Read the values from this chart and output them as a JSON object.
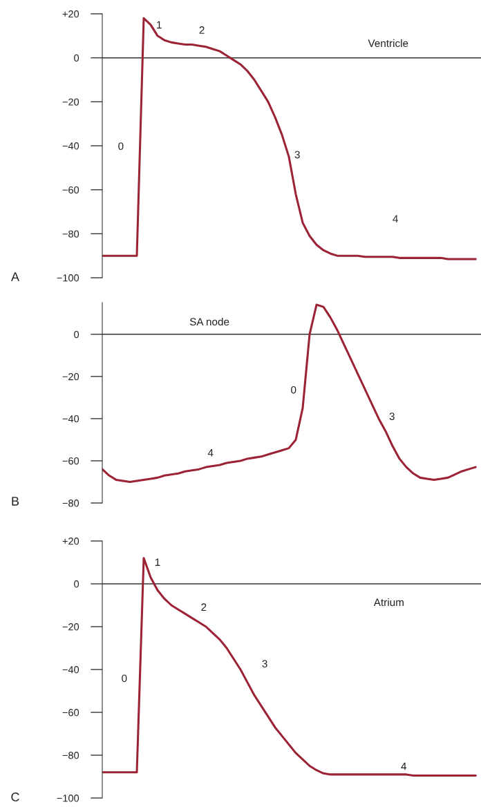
{
  "chart_data": [
    {
      "type": "line",
      "title": "Ventricle",
      "annotations": [
        "A",
        "0",
        "1",
        "2",
        "3",
        "4"
      ],
      "categories": [
        null,
        null,
        null,
        null,
        null,
        null,
        null,
        null,
        null,
        null,
        null,
        null,
        null,
        null,
        null,
        null,
        null,
        null,
        null,
        null,
        null,
        null,
        null,
        null,
        null,
        null,
        null,
        null,
        null,
        null,
        null,
        null,
        null,
        null,
        null,
        null,
        null,
        null,
        null,
        null,
        null,
        null,
        null,
        null,
        null,
        null,
        null,
        null,
        null,
        null,
        null,
        null,
        null,
        null,
        null
      ],
      "series": [
        {
          "color": "#9b2335",
          "values": [
            -90,
            -90,
            -90,
            -90,
            -90,
            -90,
            18,
            15,
            10,
            8,
            7,
            6.5,
            6,
            6,
            5.5,
            5,
            4,
            3,
            1,
            -1,
            -3,
            -6,
            -10,
            -15,
            -20,
            -27,
            -35,
            -45,
            -62,
            -75,
            -81,
            -85,
            -87.5,
            -89,
            -90,
            -90,
            -90,
            -90,
            -90.5,
            -90.5,
            -90.5,
            -90.5,
            -90.5,
            -91,
            -91,
            -91,
            -91,
            -91,
            -91,
            -91,
            -91.5,
            -91.5,
            -91.5,
            -91.5,
            -91.5
          ]
        }
      ],
      "ylim": [
        -100,
        20
      ],
      "yticks": [
        {
          "value": 20,
          "label": "+20"
        },
        {
          "value": 0,
          "label": "0"
        },
        {
          "value": -20,
          "label": "−20"
        },
        {
          "value": -40,
          "label": "−40"
        },
        {
          "value": -60,
          "label": "−60"
        },
        {
          "value": -80,
          "label": "−80"
        },
        {
          "value": -100,
          "label": "−100"
        }
      ],
      "ref_lines": [
        {
          "axis": "y",
          "value": 0,
          "color": "#333333"
        }
      ],
      "tick_labels": "y",
      "grid": false,
      "legend": false
    },
    {
      "type": "line",
      "title": "SA node",
      "annotations": [
        "B",
        "0",
        "3",
        "4"
      ],
      "categories": [
        null,
        null,
        null,
        null,
        null,
        null,
        null,
        null,
        null,
        null,
        null,
        null,
        null,
        null,
        null,
        null,
        null,
        null,
        null,
        null,
        null,
        null,
        null,
        null,
        null,
        null,
        null,
        null,
        null,
        null,
        null,
        null,
        null,
        null,
        null,
        null,
        null,
        null,
        null,
        null,
        null,
        null,
        null,
        null,
        null,
        null,
        null,
        null,
        null,
        null,
        null,
        null,
        null,
        null,
        null
      ],
      "series": [
        {
          "color": "#9b2335",
          "values": [
            -64,
            -67,
            -69,
            -69.5,
            -70,
            -69.5,
            -69,
            -68.5,
            -68,
            -67,
            -66.5,
            -66,
            -65,
            -64.5,
            -64,
            -63,
            -62.5,
            -62,
            -61,
            -60.5,
            -60,
            -59,
            -58.5,
            -58,
            -57,
            -56,
            -55,
            -54,
            -50,
            -35,
            0,
            14,
            13,
            8,
            2,
            -5,
            -12,
            -19,
            -26,
            -33,
            -40,
            -46,
            -53,
            -59,
            -63,
            -66,
            -68,
            -68.5,
            -69,
            -68.5,
            -68,
            -66.5,
            -65,
            -64,
            -63
          ]
        }
      ],
      "ylim": [
        -80,
        15
      ],
      "yticks": [
        {
          "value": 0,
          "label": "0"
        },
        {
          "value": -20,
          "label": "−20"
        },
        {
          "value": -40,
          "label": "−40"
        },
        {
          "value": -60,
          "label": "−60"
        },
        {
          "value": -80,
          "label": "−80"
        }
      ],
      "ref_lines": [
        {
          "axis": "y",
          "value": 0,
          "color": "#333333"
        }
      ],
      "tick_labels": "y",
      "grid": false,
      "legend": false
    },
    {
      "type": "line",
      "title": "Atrium",
      "annotations": [
        "C",
        "0",
        "1",
        "2",
        "3",
        "4"
      ],
      "categories": [
        null,
        null,
        null,
        null,
        null,
        null,
        null,
        null,
        null,
        null,
        null,
        null,
        null,
        null,
        null,
        null,
        null,
        null,
        null,
        null,
        null,
        null,
        null,
        null,
        null,
        null,
        null,
        null,
        null,
        null,
        null,
        null,
        null,
        null,
        null,
        null,
        null,
        null,
        null,
        null,
        null,
        null,
        null,
        null,
        null,
        null,
        null,
        null,
        null,
        null,
        null,
        null,
        null,
        null,
        null
      ],
      "series": [
        {
          "color": "#9b2335",
          "values": [
            -88,
            -88,
            -88,
            -88,
            -88,
            -88,
            12,
            3,
            -3,
            -7,
            -10,
            -12,
            -14,
            -16,
            -18,
            -20,
            -23,
            -26,
            -30,
            -35,
            -40,
            -46,
            -52,
            -57,
            -62,
            -67,
            -71,
            -75,
            -79,
            -82,
            -85,
            -87,
            -88.5,
            -89,
            -89,
            -89,
            -89,
            -89,
            -89,
            -89,
            -89,
            -89,
            -89,
            -89,
            -89,
            -89.5,
            -89.5,
            -89.5,
            -89.5,
            -89.5,
            -89.5,
            -89.5,
            -89.5,
            -89.5,
            -89.5
          ]
        }
      ],
      "ylim": [
        -100,
        20
      ],
      "yticks": [
        {
          "value": 20,
          "label": "+20"
        },
        {
          "value": 0,
          "label": "0"
        },
        {
          "value": -20,
          "label": "−20"
        },
        {
          "value": -40,
          "label": "−40"
        },
        {
          "value": -60,
          "label": "−60"
        },
        {
          "value": -80,
          "label": "−80"
        },
        {
          "value": -100,
          "label": "−100"
        }
      ],
      "ref_lines": [
        {
          "axis": "y",
          "value": 0,
          "color": "#333333"
        }
      ],
      "tick_labels": "y",
      "grid": false,
      "legend": false
    }
  ]
}
